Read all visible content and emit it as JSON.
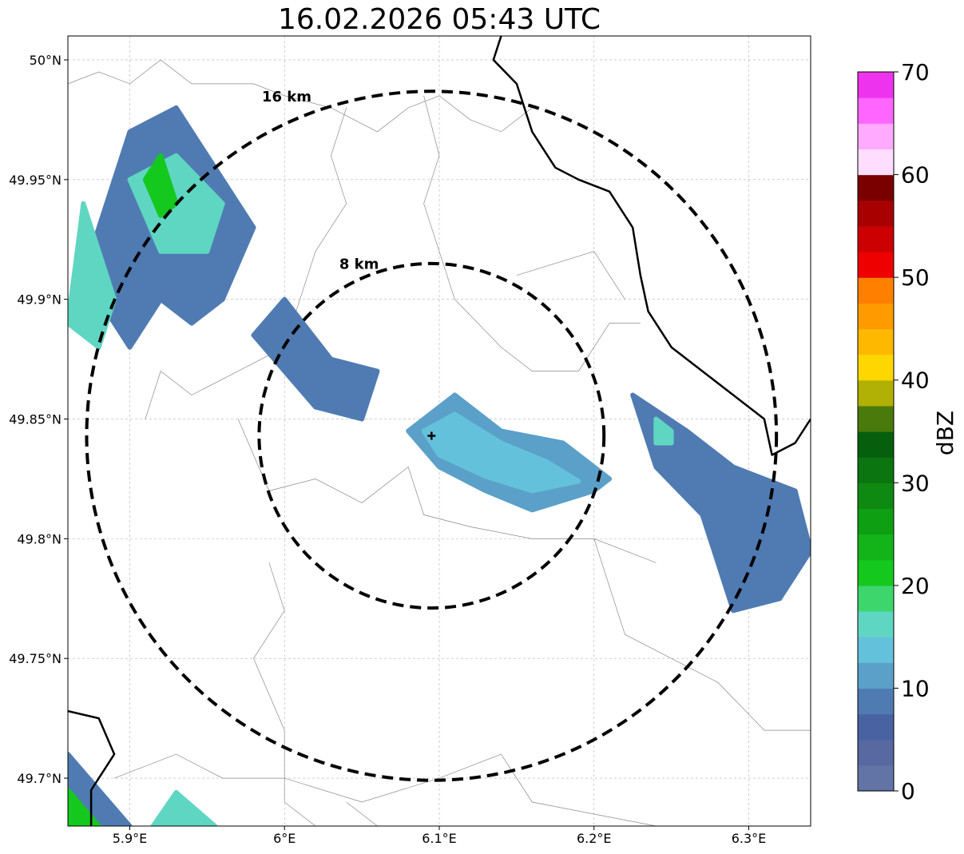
{
  "title": "16.02.2026 05:43 UTC",
  "map": {
    "lon_range": [
      5.86,
      6.34
    ],
    "lat_range": [
      49.68,
      50.01
    ],
    "lon_ticks": [
      {
        "value": 5.9,
        "label": "5.9°E"
      },
      {
        "value": 6.0,
        "label": "6°E"
      },
      {
        "value": 6.1,
        "label": "6.1°E"
      },
      {
        "value": 6.2,
        "label": "6.2°E"
      },
      {
        "value": 6.3,
        "label": "6.3°E"
      }
    ],
    "lat_ticks": [
      {
        "value": 50.0,
        "label": "50°N"
      },
      {
        "value": 49.95,
        "label": "49.95°N"
      },
      {
        "value": 49.9,
        "label": "49.9°N"
      },
      {
        "value": 49.85,
        "label": "49.85°N"
      },
      {
        "value": 49.8,
        "label": "49.8°N"
      },
      {
        "value": 49.75,
        "label": "49.75°N"
      },
      {
        "value": 49.7,
        "label": "49.7°N"
      }
    ],
    "radar_site": {
      "lon": 6.095,
      "lat": 49.843
    },
    "range_rings": [
      {
        "label": "8 km",
        "radius_km": 8
      },
      {
        "label": "16 km",
        "radius_km": 16
      }
    ]
  },
  "colorbar": {
    "label": "dBZ",
    "min": 0,
    "max": 70,
    "step": 2.5,
    "ticks": [
      "0",
      "10",
      "20",
      "30",
      "40",
      "50",
      "60",
      "70"
    ],
    "colors": [
      "#6274a6",
      "#5868a0",
      "#4962a2",
      "#4f7bb2",
      "#5aa0c8",
      "#64c1db",
      "#5fd6c2",
      "#3dd66d",
      "#14c81e",
      "#12b41a",
      "#0e9f12",
      "#0e8a12",
      "#0b7510",
      "#065f0d",
      "#4a7a0c",
      "#b0b005",
      "#ffd700",
      "#ffb800",
      "#ff9a00",
      "#ff7f00",
      "#ee0000",
      "#cc0000",
      "#a80000",
      "#7a0000",
      "#ffddff",
      "#ffaaff",
      "#ff66ff",
      "#ee33ee"
    ]
  },
  "echoes": [
    {
      "name": "north-west-cell",
      "color": "#4f7bb2",
      "points": [
        [
          5.87,
          49.91
        ],
        [
          5.9,
          49.97
        ],
        [
          5.93,
          49.98
        ],
        [
          5.96,
          49.95
        ],
        [
          5.98,
          49.93
        ],
        [
          5.96,
          49.9
        ],
        [
          5.94,
          49.89
        ],
        [
          5.92,
          49.9
        ],
        [
          5.9,
          49.88
        ]
      ]
    },
    {
      "name": "north-west-core",
      "color": "#5fd6c2",
      "points": [
        [
          5.9,
          49.95
        ],
        [
          5.93,
          49.96
        ],
        [
          5.96,
          49.94
        ],
        [
          5.95,
          49.92
        ],
        [
          5.92,
          49.92
        ]
      ]
    },
    {
      "name": "north-west-peak",
      "color": "#14c81e",
      "points": [
        [
          5.91,
          49.95
        ],
        [
          5.92,
          49.96
        ],
        [
          5.93,
          49.94
        ],
        [
          5.92,
          49.935
        ]
      ]
    },
    {
      "name": "west-edge-cell",
      "color": "#5fd6c2",
      "points": [
        [
          5.86,
          49.89
        ],
        [
          5.87,
          49.94
        ],
        [
          5.89,
          49.9
        ],
        [
          5.88,
          49.88
        ]
      ]
    },
    {
      "name": "inner-west-cell",
      "color": "#4f7bb2",
      "points": [
        [
          5.98,
          49.885
        ],
        [
          6.0,
          49.9
        ],
        [
          6.03,
          49.875
        ],
        [
          6.06,
          49.87
        ],
        [
          6.05,
          49.85
        ],
        [
          6.02,
          49.855
        ],
        [
          6.0,
          49.87
        ]
      ]
    },
    {
      "name": "central-cell",
      "color": "#5aa0c8",
      "points": [
        [
          6.08,
          49.845
        ],
        [
          6.11,
          49.86
        ],
        [
          6.14,
          49.845
        ],
        [
          6.18,
          49.84
        ],
        [
          6.21,
          49.825
        ],
        [
          6.2,
          49.82
        ],
        [
          6.16,
          49.812
        ],
        [
          6.13,
          49.82
        ],
        [
          6.1,
          49.83
        ]
      ]
    },
    {
      "name": "central-core",
      "color": "#64c1db",
      "points": [
        [
          6.09,
          49.845
        ],
        [
          6.11,
          49.852
        ],
        [
          6.14,
          49.84
        ],
        [
          6.17,
          49.832
        ],
        [
          6.19,
          49.824
        ],
        [
          6.16,
          49.82
        ],
        [
          6.13,
          49.826
        ],
        [
          6.1,
          49.835
        ]
      ]
    },
    {
      "name": "east-cell",
      "color": "#4f7bb2",
      "points": [
        [
          6.225,
          49.86
        ],
        [
          6.26,
          49.845
        ],
        [
          6.29,
          49.83
        ],
        [
          6.33,
          49.82
        ],
        [
          6.34,
          49.795
        ],
        [
          6.32,
          49.775
        ],
        [
          6.29,
          49.77
        ],
        [
          6.28,
          49.79
        ],
        [
          6.27,
          49.81
        ],
        [
          6.24,
          49.83
        ]
      ]
    },
    {
      "name": "east-core",
      "color": "#5fd6c2",
      "points": [
        [
          6.24,
          49.85
        ],
        [
          6.25,
          49.845
        ],
        [
          6.25,
          49.84
        ],
        [
          6.24,
          49.84
        ]
      ]
    },
    {
      "name": "south-west-cell",
      "color": "#4f7bb2",
      "points": [
        [
          5.86,
          49.71
        ],
        [
          5.9,
          49.68
        ],
        [
          5.86,
          49.68
        ]
      ]
    },
    {
      "name": "south-west-core",
      "color": "#14c81e",
      "points": [
        [
          5.86,
          49.695
        ],
        [
          5.88,
          49.68
        ],
        [
          5.86,
          49.68
        ]
      ]
    },
    {
      "name": "south-cell",
      "color": "#5fd6c2",
      "points": [
        [
          5.915,
          49.68
        ],
        [
          5.93,
          49.694
        ],
        [
          5.955,
          49.68
        ]
      ]
    }
  ],
  "borders": [
    {
      "name": "national-border-north-east",
      "points": [
        [
          6.14,
          50.01
        ],
        [
          6.135,
          50.0
        ],
        [
          6.15,
          49.99
        ],
        [
          6.16,
          49.97
        ],
        [
          6.175,
          49.955
        ],
        [
          6.19,
          49.95
        ],
        [
          6.21,
          49.945
        ],
        [
          6.225,
          49.93
        ],
        [
          6.23,
          49.91
        ],
        [
          6.235,
          49.895
        ],
        [
          6.25,
          49.88
        ],
        [
          6.27,
          49.87
        ],
        [
          6.29,
          49.86
        ],
        [
          6.31,
          49.85
        ],
        [
          6.315,
          49.835
        ],
        [
          6.33,
          49.84
        ],
        [
          6.34,
          49.85
        ]
      ]
    },
    {
      "name": "national-border-south-west",
      "points": [
        [
          5.86,
          49.728
        ],
        [
          5.88,
          49.725
        ],
        [
          5.89,
          49.71
        ],
        [
          5.875,
          49.695
        ],
        [
          5.875,
          49.68
        ]
      ]
    }
  ],
  "boundaries": [
    {
      "name": "admin-boundary-1",
      "points": [
        [
          5.86,
          49.99
        ],
        [
          5.88,
          49.995
        ],
        [
          5.9,
          49.99
        ],
        [
          5.92,
          50.0
        ],
        [
          5.94,
          49.99
        ],
        [
          5.98,
          49.99
        ],
        [
          6.0,
          49.985
        ],
        [
          6.03,
          49.98
        ],
        [
          6.06,
          49.97
        ],
        [
          6.08,
          49.98
        ],
        [
          6.1,
          49.985
        ],
        [
          6.12,
          49.975
        ],
        [
          6.14,
          49.97
        ],
        [
          6.16,
          49.98
        ]
      ]
    },
    {
      "name": "admin-boundary-2",
      "points": [
        [
          6.04,
          49.98
        ],
        [
          6.03,
          49.96
        ],
        [
          6.04,
          49.94
        ],
        [
          6.02,
          49.92
        ],
        [
          6.01,
          49.9
        ],
        [
          6.0,
          49.88
        ],
        [
          5.97,
          49.87
        ],
        [
          5.94,
          49.86
        ],
        [
          5.92,
          49.87
        ],
        [
          5.91,
          49.85
        ]
      ]
    },
    {
      "name": "admin-boundary-3",
      "points": [
        [
          6.09,
          49.985
        ],
        [
          6.1,
          49.96
        ],
        [
          6.09,
          49.94
        ],
        [
          6.1,
          49.92
        ],
        [
          6.11,
          49.9
        ],
        [
          6.14,
          49.88
        ],
        [
          6.16,
          49.87
        ],
        [
          6.19,
          49.87
        ],
        [
          6.21,
          49.89
        ],
        [
          6.23,
          49.89
        ]
      ]
    },
    {
      "name": "admin-boundary-4",
      "points": [
        [
          5.97,
          49.85
        ],
        [
          5.99,
          49.82
        ],
        [
          6.02,
          49.825
        ],
        [
          6.05,
          49.815
        ],
        [
          6.08,
          49.83
        ],
        [
          6.09,
          49.81
        ],
        [
          6.12,
          49.805
        ],
        [
          6.16,
          49.8
        ],
        [
          6.2,
          49.8
        ],
        [
          6.24,
          49.79
        ]
      ]
    },
    {
      "name": "admin-boundary-5",
      "points": [
        [
          5.99,
          49.79
        ],
        [
          6.0,
          49.77
        ],
        [
          5.98,
          49.75
        ],
        [
          6.0,
          49.72
        ],
        [
          6.0,
          49.69
        ],
        [
          6.02,
          49.68
        ]
      ]
    },
    {
      "name": "admin-boundary-6",
      "points": [
        [
          5.89,
          49.7
        ],
        [
          5.93,
          49.71
        ],
        [
          5.96,
          49.7
        ],
        [
          6.0,
          49.7
        ],
        [
          6.05,
          49.69
        ],
        [
          6.1,
          49.7
        ],
        [
          6.14,
          49.71
        ],
        [
          6.16,
          49.69
        ],
        [
          6.2,
          49.685
        ],
        [
          6.24,
          49.68
        ]
      ]
    },
    {
      "name": "admin-boundary-7",
      "points": [
        [
          6.2,
          49.8
        ],
        [
          6.21,
          49.78
        ],
        [
          6.22,
          49.76
        ],
        [
          6.25,
          49.75
        ],
        [
          6.28,
          49.74
        ],
        [
          6.31,
          49.72
        ],
        [
          6.34,
          49.72
        ]
      ]
    },
    {
      "name": "admin-boundary-8",
      "points": [
        [
          6.04,
          49.69
        ],
        [
          6.06,
          49.68
        ]
      ]
    },
    {
      "name": "admin-boundary-9",
      "points": [
        [
          6.15,
          49.91
        ],
        [
          6.2,
          49.92
        ],
        [
          6.22,
          49.9
        ]
      ]
    }
  ]
}
